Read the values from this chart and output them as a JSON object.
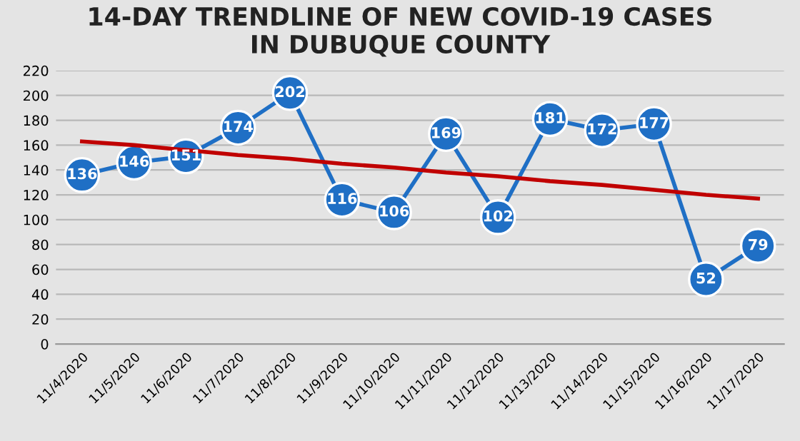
{
  "chart_data": {
    "type": "line",
    "title": "14-DAY TRENDLINE OF NEW COVID-19 CASES\nIN DUBUQUE COUNTY",
    "categories": [
      "11/4/2020",
      "11/5/2020",
      "11/6/2020",
      "11/7/2020",
      "11/8/2020",
      "11/9/2020",
      "11/10/2020",
      "11/11/2020",
      "11/12/2020",
      "11/13/2020",
      "11/14/2020",
      "11/15/2020",
      "11/16/2020",
      "11/17/2020"
    ],
    "series": [
      {
        "color": "#1f6fc5",
        "values": [
          136,
          146,
          151,
          174,
          202,
          116,
          106,
          169,
          102,
          181,
          172,
          177,
          52,
          79
        ],
        "marker": "circle",
        "data_labels": true
      },
      {
        "color": "#c00000",
        "values": [
          163,
          160,
          156,
          152,
          149,
          145,
          142,
          138,
          135,
          131,
          128,
          124,
          120,
          117
        ],
        "marker": "none"
      }
    ],
    "ylim": [
      0,
      220
    ],
    "yticks": [
      0,
      20,
      40,
      60,
      80,
      100,
      120,
      140,
      160,
      180,
      200,
      220
    ],
    "grid": "y",
    "legend": false
  }
}
